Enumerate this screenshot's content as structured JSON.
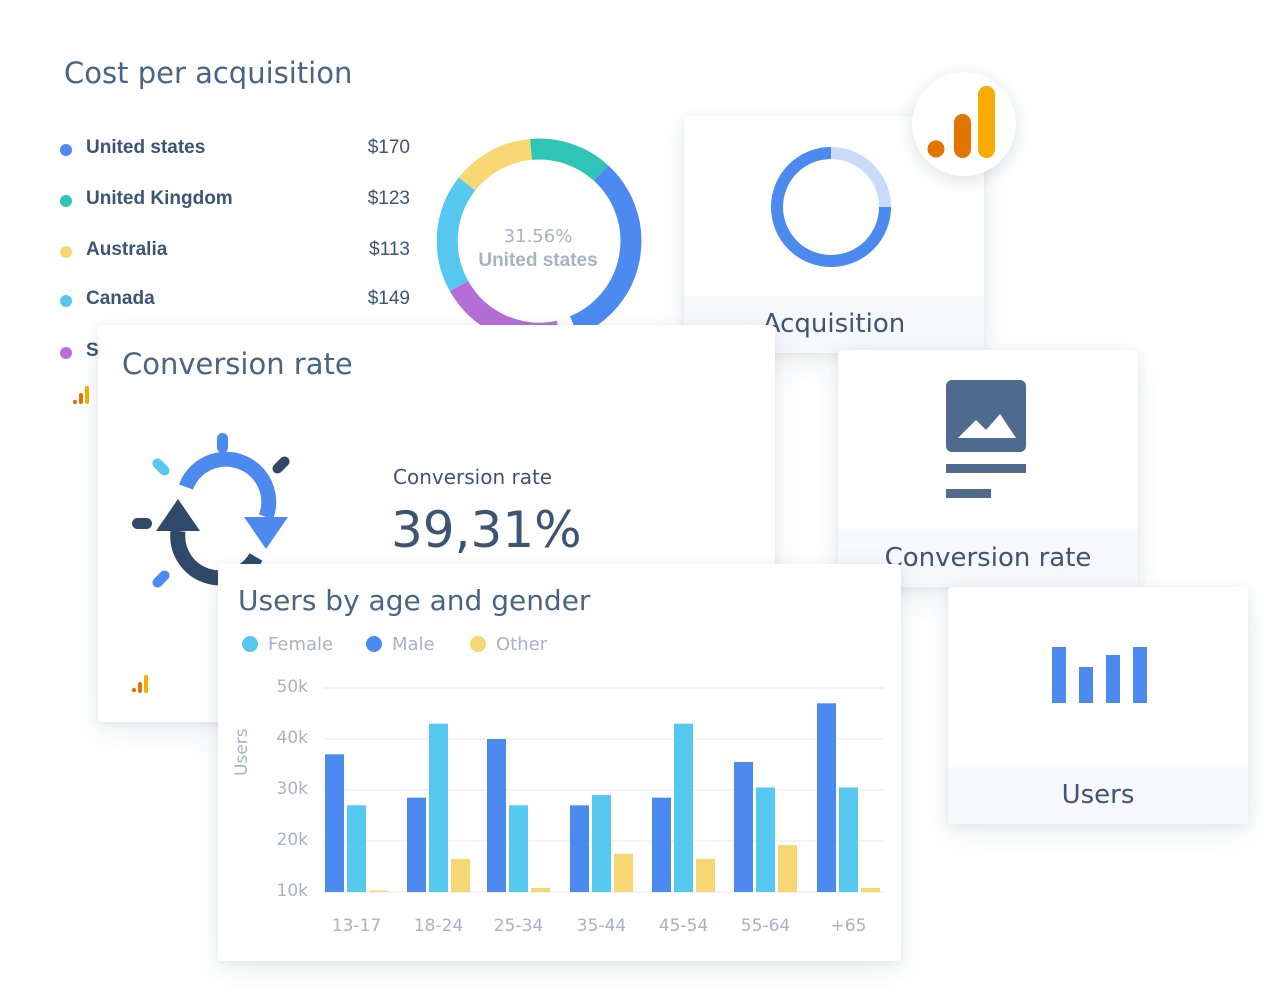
{
  "cost_per_acquisition": {
    "title": "Cost per acquisition",
    "rows": [
      {
        "country": "United states",
        "value": "$170",
        "color": "#4d8af0"
      },
      {
        "country": "United Kingdom",
        "value": "$123",
        "color": "#2ec4b6"
      },
      {
        "country": "Australia",
        "value": "$113",
        "color": "#f7d774"
      },
      {
        "country": "Canada",
        "value": "$149",
        "color": "#56c8f0"
      },
      {
        "country": "S",
        "value": "",
        "color": "#b56ed8"
      }
    ],
    "donut_center_percent": "31.56%",
    "donut_center_label": "United states"
  },
  "conversion_card": {
    "title": "Conversion rate",
    "metric_label": "Conversion rate",
    "metric_value": "39,31%"
  },
  "users_card": {
    "title": "Users by age and gender",
    "legend": [
      {
        "label": "Female",
        "color": "#56c8f0"
      },
      {
        "label": "Male",
        "color": "#4d8af0"
      },
      {
        "label": "Other",
        "color": "#f7d774"
      }
    ]
  },
  "widgets": {
    "acquisition_label": "Acquisition",
    "conversion_label": "Conversion rate",
    "users_label": "Users"
  },
  "chart_data": {
    "type": "bar",
    "title": "Users by age and gender",
    "xlabel": "",
    "ylabel": "Users",
    "categories": [
      "13-17",
      "18-24",
      "25-34",
      "35-44",
      "45-54",
      "55-64",
      "+65"
    ],
    "yticks": [
      "10k",
      "20k",
      "30k",
      "40k",
      "50k"
    ],
    "ylim": [
      10000,
      50000
    ],
    "series": [
      {
        "name": "Male",
        "color": "#4d8af0",
        "values": [
          37000,
          28500,
          40000,
          27000,
          28500,
          35500,
          47000
        ]
      },
      {
        "name": "Female",
        "color": "#56c8f0",
        "values": [
          27000,
          43000,
          27000,
          29000,
          43000,
          30500,
          30500
        ]
      },
      {
        "name": "Other",
        "color": "#f7d774",
        "values": [
          10300,
          16500,
          10800,
          17500,
          16500,
          19200,
          10800
        ]
      }
    ],
    "grid": true,
    "legend": "top-left"
  }
}
